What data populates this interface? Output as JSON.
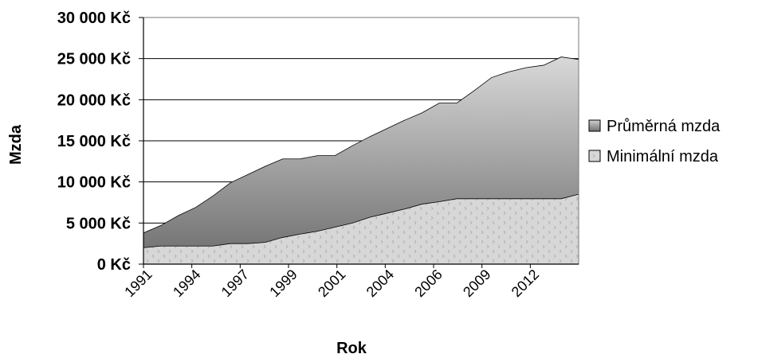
{
  "chart_data": {
    "type": "area",
    "stacked": false,
    "title": "",
    "xlabel": "Rok",
    "ylabel": "Mzda",
    "ylim": [
      0,
      30000
    ],
    "yticks": [
      "0 Kč",
      "5 000 Kč",
      "10 000 Kč",
      "15 000 Kč",
      "20 000 Kč",
      "25 000 Kč",
      "30 000 Kč"
    ],
    "x_tick_labels": [
      "1991",
      "1994",
      "1997",
      "1999",
      "2001",
      "2004",
      "2006",
      "2009",
      "2012"
    ],
    "grid": "horizontal",
    "legend_position": "right",
    "series": [
      {
        "name": "Průměrná mzda",
        "color": "gradient-gray",
        "values": [
          3800,
          4700,
          5900,
          6900,
          8300,
          9900,
          10900,
          11900,
          12800,
          12800,
          13200,
          13200,
          14400,
          15500,
          16500,
          17500,
          18400,
          19600,
          19600,
          21100,
          22700,
          23400,
          23900,
          24200,
          25200,
          24900
        ]
      },
      {
        "name": "Minimální mzda",
        "color": "#d7d7d7",
        "pattern": "dotted-hatch",
        "values": [
          2000,
          2200,
          2200,
          2200,
          2200,
          2500,
          2500,
          2650,
          3250,
          3650,
          4000,
          4500,
          5000,
          5700,
          6200,
          6700,
          7300,
          7600,
          7955,
          7955,
          7955,
          7955,
          7955,
          7955,
          7955,
          8500
        ]
      }
    ]
  }
}
